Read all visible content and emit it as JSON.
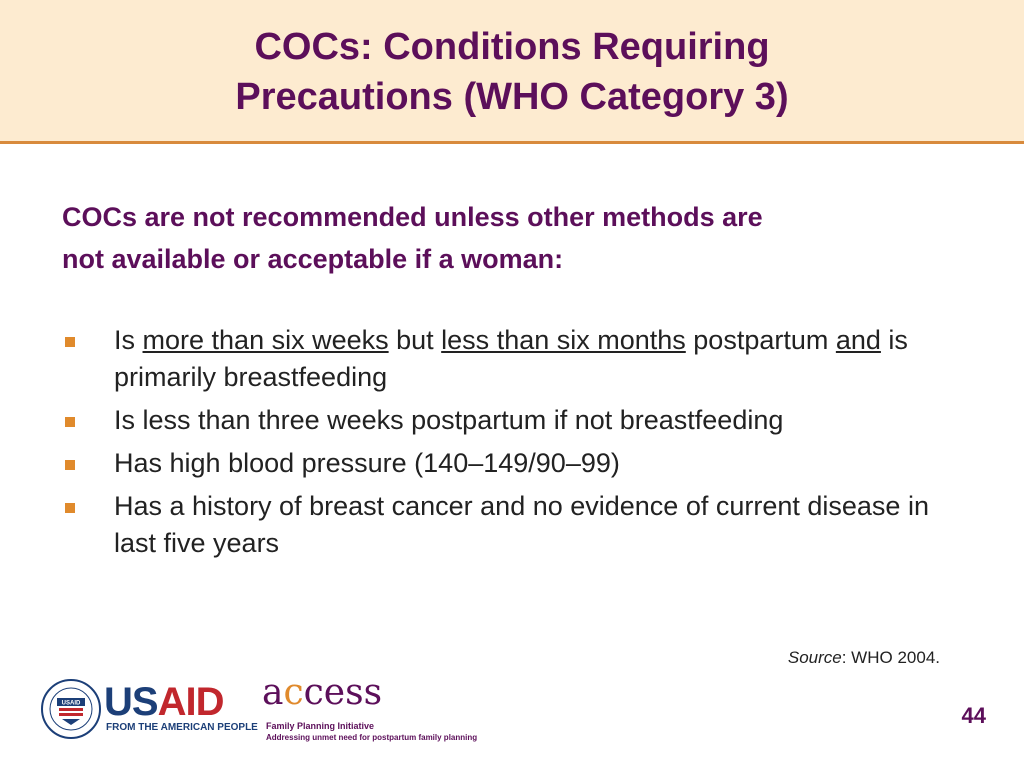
{
  "title": {
    "line1": "COCs: Conditions Requiring",
    "line2": "Precautions (WHO Category 3)"
  },
  "intro": "COCs are not recommended unless other methods are not available or acceptable if a woman:",
  "bullets": {
    "b1": {
      "p1": "Is ",
      "u1": "more than six weeks",
      "p2": " but ",
      "u2": "less than six months",
      "p3": " postpartum ",
      "u3": "and",
      "p4": " is primarily breastfeeding"
    },
    "b2": "Is less than three weeks postpartum if not breastfeeding",
    "b3": "Has high blood pressure (140–149/90–99)",
    "b4": "Has a history of breast cancer and no evidence of current disease in last five years"
  },
  "source": {
    "label": "Source",
    "text": ": WHO 2004."
  },
  "page_number": "44",
  "logos": {
    "usaid_us": "US",
    "usaid_aid": "AID",
    "usaid_tagline": "FROM THE AMERICAN PEOPLE",
    "seal_text": "USAID",
    "access_a": "a",
    "access_c": "c",
    "access_rest": "cess",
    "access_line1": "Family Planning Initiative",
    "access_line2": "Addressing unmet need for postpartum family planning"
  },
  "colors": {
    "header_bg": "#fdebd0",
    "title": "#5c0f5a",
    "rule": "#d88a3c",
    "bullet": "#e08a2c"
  }
}
